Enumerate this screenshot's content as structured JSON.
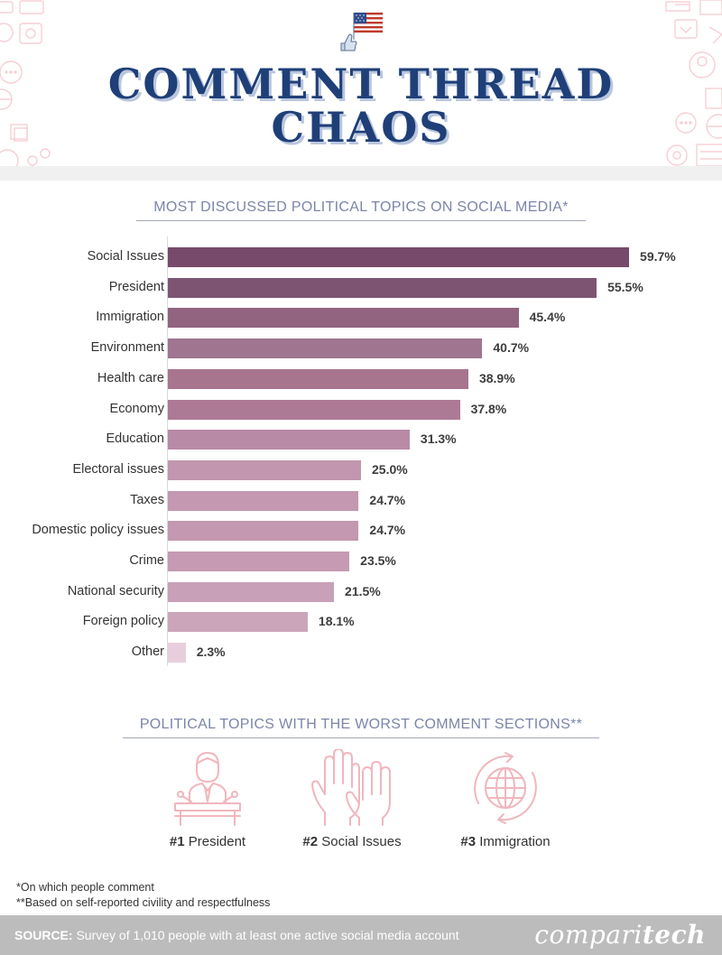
{
  "header": {
    "title_line1": "COMMENT THREAD",
    "title_line2": "CHAOS",
    "icons": [
      "flag-thumbs-up-icon"
    ]
  },
  "section1": {
    "title": "MOST DISCUSSED POLITICAL TOPICS ON SOCIAL MEDIA*"
  },
  "chart_data": {
    "type": "bar",
    "orientation": "horizontal",
    "title": "MOST DISCUSSED POLITICAL TOPICS ON SOCIAL MEDIA*",
    "xlabel": "",
    "ylabel": "",
    "xlim": [
      0,
      60
    ],
    "grid": false,
    "unit": "%",
    "categories": [
      "Social Issues",
      "President",
      "Immigration",
      "Environment",
      "Health care",
      "Economy",
      "Education",
      "Electoral issues",
      "Taxes",
      "Domestic policy issues",
      "Crime",
      "National security",
      "Foreign policy",
      "Other"
    ],
    "values": [
      59.7,
      55.5,
      45.4,
      40.7,
      38.9,
      37.8,
      31.3,
      25.0,
      24.7,
      24.7,
      23.5,
      21.5,
      18.1,
      2.3
    ],
    "value_labels": [
      "59.7%",
      "55.5%",
      "45.4%",
      "40.7%",
      "38.9%",
      "37.8%",
      "31.3%",
      "25.0%",
      "24.7%",
      "24.7%",
      "23.5%",
      "21.5%",
      "18.1%",
      "2.3%"
    ],
    "colors": [
      "#774a6b",
      "#7d5573",
      "#92647f",
      "#9f7590",
      "#a8758f",
      "#ad7a95",
      "#b98aa6",
      "#c196ae",
      "#c398b0",
      "#c398b0",
      "#c59ab2",
      "#c8a0b7",
      "#cba6bb",
      "#e8cedc"
    ]
  },
  "section2": {
    "title": "POLITICAL TOPICS WITH THE WORST COMMENT SECTIONS**",
    "items": [
      {
        "rank": "#1",
        "label": "President",
        "icon": "president-podium-icon"
      },
      {
        "rank": "#2",
        "label": "Social Issues",
        "icon": "raised-hands-icon"
      },
      {
        "rank": "#3",
        "label": "Immigration",
        "icon": "globe-cycle-icon"
      }
    ]
  },
  "footnotes": {
    "note1": "*On which people comment",
    "note2": "**Based on self-reported civility and respectfulness"
  },
  "footer": {
    "source_label": "SOURCE:",
    "source_text": " Survey of 1,010 people with at least one active social media account",
    "brand_light": "compari",
    "brand_bold": "tech"
  },
  "colors": {
    "title": "#1f3f78",
    "title_shadow": "#b9c6de",
    "section_title": "#7c85a8",
    "icon_pink": "#f0b6bd",
    "footer_bg": "#bcbcbc"
  }
}
